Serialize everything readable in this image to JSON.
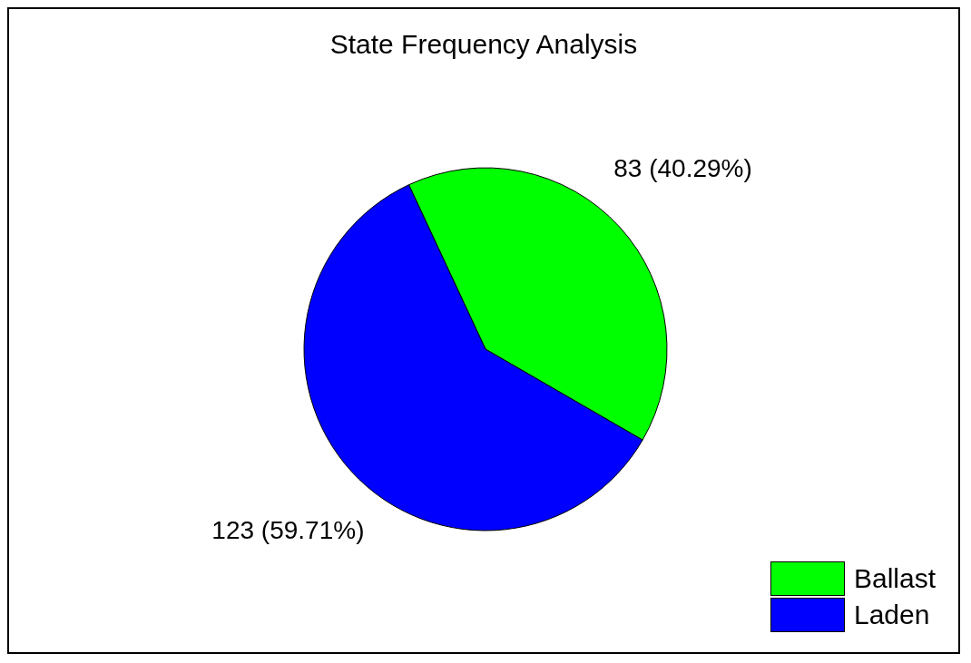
{
  "chart_data": {
    "type": "pie",
    "title": "State Frequency Analysis",
    "categories": [
      "Ballast",
      "Laden"
    ],
    "values": [
      83,
      123
    ],
    "colors": [
      "#00ff00",
      "#0000ff"
    ],
    "value_labels": [
      "83 (40.29%)",
      "123 (59.71%)"
    ],
    "legend": "bottom right"
  }
}
